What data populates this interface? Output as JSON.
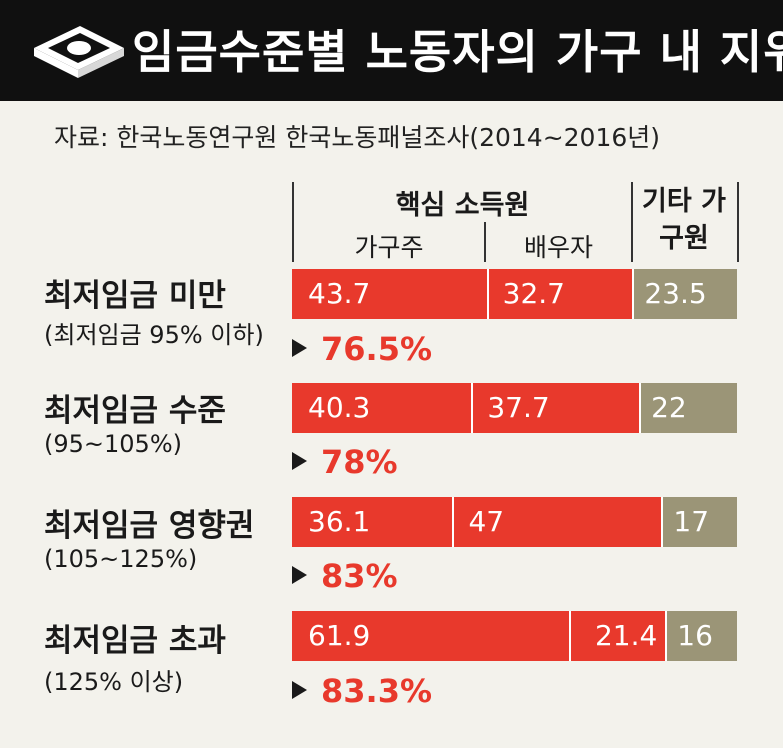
{
  "title": "임금수준별 노동자의 가구 내 지위",
  "source": "자료: 한국노동연구원 한국노동패널조사(2014~2016년)",
  "colors": {
    "core": "#e8392c",
    "other": "#9b9577",
    "header_bg": "#101010"
  },
  "chart_data": {
    "type": "bar",
    "stacked": true,
    "orientation": "horizontal",
    "group_header": "핵심 소득원",
    "columns": [
      "가구주",
      "배우자",
      "기타 가구원"
    ],
    "categories": [
      {
        "label": "최저임금 미만",
        "sub": "(최저임금 95% 이하)",
        "total": "76.5%"
      },
      {
        "label": "최저임금 수준",
        "sub": "(95~105%)",
        "total": "78%"
      },
      {
        "label": "최저임금 영향권",
        "sub": "(105~125%)",
        "total": "83%"
      },
      {
        "label": "최저임금 초과",
        "sub": "(125% 이상)",
        "total": "83.3%"
      }
    ],
    "series": [
      {
        "name": "가구주",
        "values": [
          43.7,
          40.3,
          36.1,
          61.9
        ],
        "labels": [
          "43.7",
          "40.3",
          "36.1",
          "61.9"
        ]
      },
      {
        "name": "배우자",
        "values": [
          32.7,
          37.7,
          47,
          21.4
        ],
        "labels": [
          "32.7",
          "37.7",
          "47",
          "21.4"
        ]
      },
      {
        "name": "기타 가구원",
        "values": [
          23.5,
          22,
          17,
          16
        ],
        "labels": [
          "23.5",
          "22",
          "17",
          "16"
        ]
      }
    ]
  }
}
